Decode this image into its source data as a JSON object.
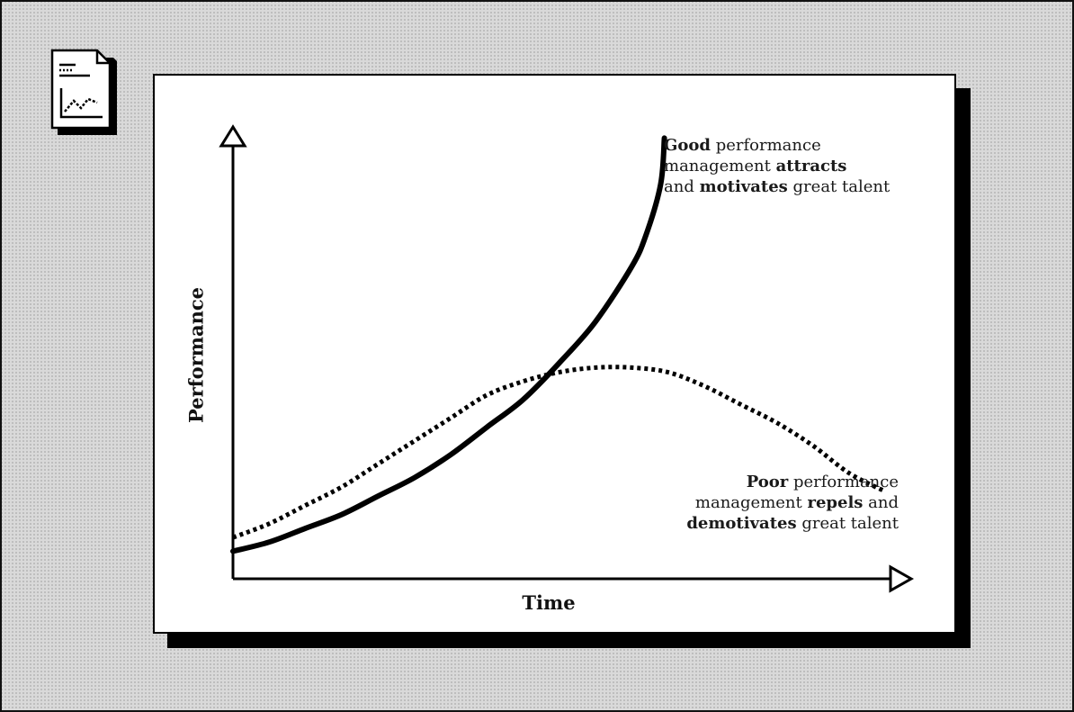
{
  "chart_data": {
    "type": "line",
    "title": "",
    "xlabel": "Time",
    "ylabel": "Performance",
    "grid": false,
    "legend": "none",
    "series": [
      {
        "style": "solid",
        "color": "#000000",
        "points": [
          [
            0.0,
            0.06
          ],
          [
            0.05,
            0.08
          ],
          [
            0.1,
            0.11
          ],
          [
            0.15,
            0.14
          ],
          [
            0.2,
            0.18
          ],
          [
            0.25,
            0.22
          ],
          [
            0.3,
            0.27
          ],
          [
            0.35,
            0.33
          ],
          [
            0.4,
            0.39
          ],
          [
            0.45,
            0.47
          ],
          [
            0.5,
            0.56
          ],
          [
            0.55,
            0.68
          ],
          [
            0.57,
            0.75
          ],
          [
            0.59,
            0.86
          ],
          [
            0.595,
            0.96
          ]
        ]
      },
      {
        "style": "dotted",
        "color": "#000000",
        "points": [
          [
            0.0,
            0.09
          ],
          [
            0.05,
            0.12
          ],
          [
            0.1,
            0.16
          ],
          [
            0.15,
            0.2
          ],
          [
            0.2,
            0.25
          ],
          [
            0.25,
            0.3
          ],
          [
            0.3,
            0.35
          ],
          [
            0.35,
            0.4
          ],
          [
            0.4,
            0.43
          ],
          [
            0.45,
            0.45
          ],
          [
            0.5,
            0.46
          ],
          [
            0.55,
            0.46
          ],
          [
            0.6,
            0.45
          ],
          [
            0.65,
            0.42
          ],
          [
            0.7,
            0.38
          ],
          [
            0.75,
            0.34
          ],
          [
            0.8,
            0.29
          ],
          [
            0.85,
            0.23
          ],
          [
            0.9,
            0.19
          ]
        ]
      }
    ],
    "annotations": {
      "good": {
        "line1_bold": "Good",
        "line1_rest": " performance",
        "line2_plain": "management ",
        "line2_bold": "attracts",
        "line3_plain": "and ",
        "line3_bold": "motivates",
        "line3_rest": " great talent"
      },
      "poor": {
        "line1_bold": "Poor",
        "line1_rest": " performance",
        "line2_plain": "management ",
        "line2_bold": "repels",
        "line2_rest": " and",
        "line3_bold": "demotivates",
        "line3_rest": " great talent"
      }
    }
  },
  "icons": {
    "document": "document-chart-icon"
  }
}
